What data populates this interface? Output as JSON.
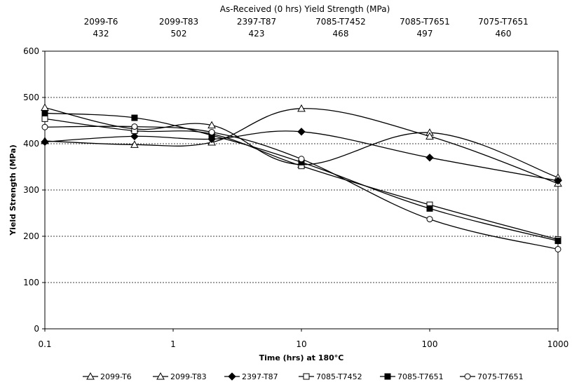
{
  "chart_data": {
    "type": "line",
    "header_title": "As-Received (0 hrs) Yield Strength (MPa)",
    "as_received": [
      {
        "alloy": "2099-T6",
        "value": "432"
      },
      {
        "alloy": "2099-T83",
        "value": "502"
      },
      {
        "alloy": "2397-T87",
        "value": "423"
      },
      {
        "alloy": "7085-T7452",
        "value": "468"
      },
      {
        "alloy": "7085-T7651",
        "value": "497"
      },
      {
        "alloy": "7075-T7651",
        "value": "460"
      }
    ],
    "xlabel": "Time (hrs) at 180°C",
    "ylabel": "Yield Strength (MPa)",
    "x_scale": "log",
    "xlim": [
      0.1,
      1000
    ],
    "ylim": [
      0,
      600
    ],
    "x_ticks": [
      0.1,
      1,
      10,
      100,
      1000
    ],
    "x_tick_labels": [
      "0.1",
      "1",
      "10",
      "100",
      "1000"
    ],
    "y_ticks": [
      0,
      100,
      200,
      300,
      400,
      500,
      600
    ],
    "y_tick_labels": [
      "0",
      "100",
      "200",
      "300",
      "400",
      "500",
      "600"
    ],
    "grid": "horizontal-dashed",
    "legend_position": "bottom",
    "series": [
      {
        "name": "2099-T6",
        "marker": "triangle-open",
        "x": [
          0.1,
          0.5,
          2,
          10,
          100,
          1000
        ],
        "y": [
          478,
          432,
          440,
          355,
          424,
          327
        ]
      },
      {
        "name": "2099-T83",
        "marker": "triangle-open",
        "x": [
          0.1,
          0.5,
          2,
          10,
          100,
          1000
        ],
        "y": [
          406,
          398,
          403,
          476,
          416,
          314
        ]
      },
      {
        "name": "2397-T87",
        "marker": "diamond-filled",
        "x": [
          0.1,
          0.5,
          2,
          10,
          100,
          1000
        ],
        "y": [
          404,
          416,
          410,
          426,
          370,
          320
        ]
      },
      {
        "name": "7085-T7452",
        "marker": "square-open",
        "x": [
          0.1,
          0.5,
          2,
          10,
          100,
          1000
        ],
        "y": [
          454,
          428,
          421,
          352,
          268,
          193
        ]
      },
      {
        "name": "7085-T7651",
        "marker": "square-filled",
        "x": [
          0.1,
          0.5,
          2,
          10,
          100,
          1000
        ],
        "y": [
          466,
          456,
          418,
          360,
          260,
          190
        ]
      },
      {
        "name": "7075-T7651",
        "marker": "circle-open",
        "x": [
          0.1,
          0.5,
          2,
          10,
          100,
          1000
        ],
        "y": [
          436,
          437,
          425,
          367,
          237,
          172
        ]
      }
    ]
  }
}
